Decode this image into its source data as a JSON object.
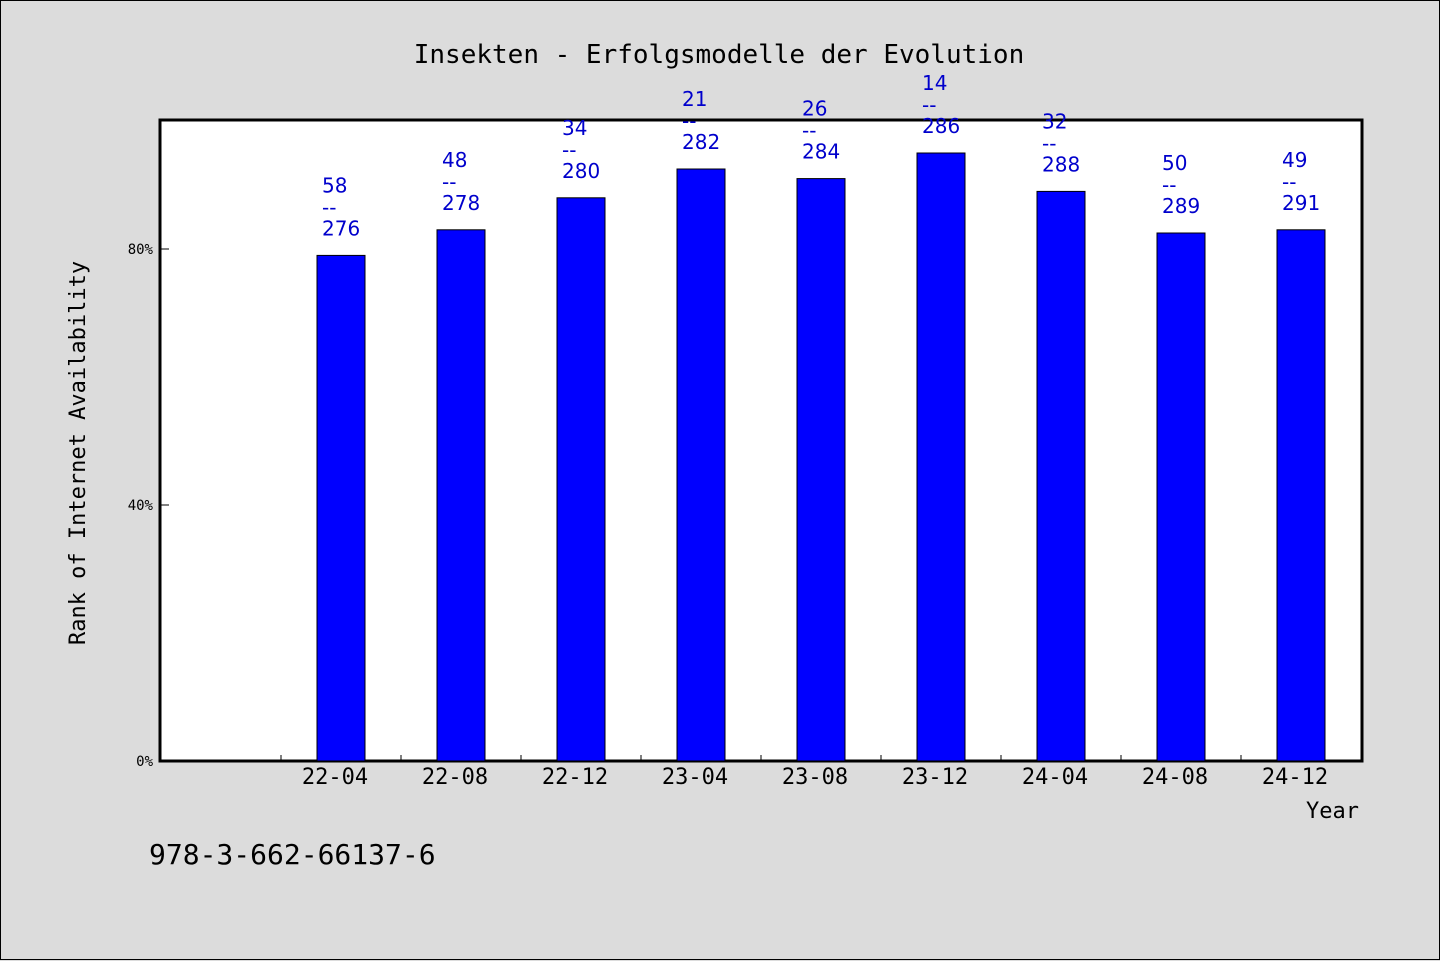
{
  "chart_data": {
    "type": "bar",
    "title": "Insekten - Erfolgsmodelle der Evolution",
    "xlabel": "Year",
    "ylabel": "Rank of Internet Availability",
    "categories": [
      "22-04",
      "22-08",
      "22-12",
      "23-04",
      "23-08",
      "23-12",
      "24-04",
      "24-08",
      "24-12"
    ],
    "values": [
      79,
      83,
      88,
      92.5,
      91,
      95,
      89,
      82.5,
      83
    ],
    "ylim": [
      0,
      100
    ],
    "yticks": [
      0,
      40,
      80
    ],
    "ytick_labels": [
      "0%",
      "40%",
      "80%"
    ],
    "data_labels": [
      {
        "top": "58",
        "mid": "--",
        "bottom": "276"
      },
      {
        "top": "48",
        "mid": "--",
        "bottom": "278"
      },
      {
        "top": "34",
        "mid": "--",
        "bottom": "280"
      },
      {
        "top": "21",
        "mid": "--",
        "bottom": "282"
      },
      {
        "top": "26",
        "mid": "--",
        "bottom": "284"
      },
      {
        "top": "14",
        "mid": "--",
        "bottom": "286"
      },
      {
        "top": "32",
        "mid": "--",
        "bottom": "288"
      },
      {
        "top": "50",
        "mid": "--",
        "bottom": "289"
      },
      {
        "top": "49",
        "mid": "--",
        "bottom": "291"
      }
    ],
    "bar_color": "#0000ff",
    "label_color": "#0000cc",
    "grid": false,
    "legend": "none"
  },
  "footnote": "978-3-662-66137-6"
}
